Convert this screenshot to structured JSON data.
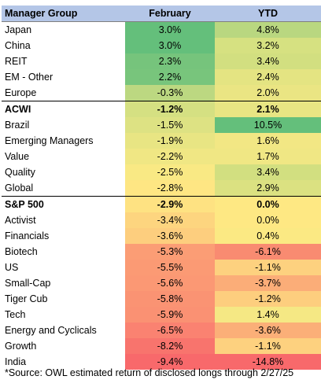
{
  "header": {
    "name": "Manager Group",
    "feb": "February",
    "ytd": "YTD"
  },
  "rows": [
    {
      "name": "Japan",
      "feb": "3.0%",
      "ytd": "4.8%",
      "bench": false,
      "feb_color": "#64bf7b",
      "ytd_color": "#b9d780"
    },
    {
      "name": "China",
      "feb": "3.0%",
      "ytd": "3.2%",
      "bench": false,
      "feb_color": "#64bf7b",
      "ytd_color": "#d6e181"
    },
    {
      "name": "REIT",
      "feb": "2.3%",
      "ytd": "3.4%",
      "bench": false,
      "feb_color": "#76c47c",
      "ytd_color": "#d2df80"
    },
    {
      "name": "EM - Other",
      "feb": "2.2%",
      "ytd": "2.4%",
      "bench": false,
      "feb_color": "#78c57c",
      "ytd_color": "#e4e482"
    },
    {
      "name": "Europe",
      "feb": "-0.3%",
      "ytd": "2.0%",
      "bench": false,
      "feb_color": "#bcd881",
      "ytd_color": "#eae583"
    },
    {
      "name": "ACWI",
      "feb": "-1.2%",
      "ytd": "2.1%",
      "bench": true,
      "feb_color": "#d5e082",
      "ytd_color": "#e8e583"
    },
    {
      "name": "Brazil",
      "feb": "-1.5%",
      "ytd": "10.5%",
      "bench": false,
      "feb_color": "#dde283",
      "ytd_color": "#64bf7b"
    },
    {
      "name": "Emerging Managers",
      "feb": "-1.9%",
      "ytd": "1.6%",
      "bench": false,
      "feb_color": "#e8e583",
      "ytd_color": "#f2e784"
    },
    {
      "name": "Value",
      "feb": "-2.2%",
      "ytd": "1.7%",
      "bench": false,
      "feb_color": "#f0e784",
      "ytd_color": "#f0e784"
    },
    {
      "name": "Quality",
      "feb": "-2.5%",
      "ytd": "3.4%",
      "bench": false,
      "feb_color": "#f9e984",
      "ytd_color": "#d2df80"
    },
    {
      "name": "Global",
      "feb": "-2.8%",
      "ytd": "2.9%",
      "bench": false,
      "feb_color": "#fee683",
      "ytd_color": "#dbe181"
    },
    {
      "name": "S&P 500",
      "feb": "-2.9%",
      "ytd": "0.0%",
      "bench": true,
      "feb_color": "#fee282",
      "ytd_color": "#fee883"
    },
    {
      "name": "Activist",
      "feb": "-3.4%",
      "ytd": "0.0%",
      "bench": false,
      "feb_color": "#fdd57f",
      "ytd_color": "#fee883"
    },
    {
      "name": "Financials",
      "feb": "-3.6%",
      "ytd": "0.4%",
      "bench": false,
      "feb_color": "#fdce7e",
      "ytd_color": "#fbe983"
    },
    {
      "name": "Biotech",
      "feb": "-5.3%",
      "ytd": "-6.1%",
      "bench": false,
      "feb_color": "#fb9d75",
      "ytd_color": "#f98b71"
    },
    {
      "name": "US",
      "feb": "-5.5%",
      "ytd": "-1.1%",
      "bench": false,
      "feb_color": "#fb9a74",
      "ytd_color": "#fdd17f"
    },
    {
      "name": "Small-Cap",
      "feb": "-5.6%",
      "ytd": "-3.7%",
      "bench": false,
      "feb_color": "#fb9874",
      "ytd_color": "#fbad78"
    },
    {
      "name": "Tiger Cub",
      "feb": "-5.8%",
      "ytd": "-1.2%",
      "bench": false,
      "feb_color": "#fa9373",
      "ytd_color": "#fdce7e"
    },
    {
      "name": "Tech",
      "feb": "-5.9%",
      "ytd": "1.4%",
      "bench": false,
      "feb_color": "#fa9173",
      "ytd_color": "#f5e884"
    },
    {
      "name": "Energy and Cyclicals",
      "feb": "-6.5%",
      "ytd": "-3.6%",
      "bench": false,
      "feb_color": "#fa8271",
      "ytd_color": "#fbaf78"
    },
    {
      "name": "Growth",
      "feb": "-8.2%",
      "ytd": "-1.1%",
      "bench": false,
      "feb_color": "#f8746d",
      "ytd_color": "#fdd17f"
    },
    {
      "name": "India",
      "feb": "-9.4%",
      "ytd": "-14.8%",
      "bench": false,
      "feb_color": "#f8696b",
      "ytd_color": "#f8696b"
    }
  ],
  "footnote": "*Source: OWL estimated return of disclosed longs through 2/27/25"
}
